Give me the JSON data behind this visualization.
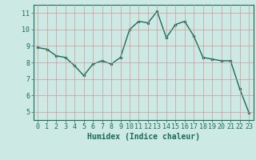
{
  "x": [
    0,
    1,
    2,
    3,
    4,
    5,
    6,
    7,
    8,
    9,
    10,
    11,
    12,
    13,
    14,
    15,
    16,
    17,
    18,
    19,
    20,
    21,
    22,
    23
  ],
  "y": [
    8.9,
    8.8,
    8.4,
    8.3,
    7.8,
    7.2,
    7.9,
    8.1,
    7.9,
    8.3,
    10.0,
    10.5,
    10.4,
    11.1,
    9.5,
    10.3,
    10.5,
    9.6,
    8.3,
    8.2,
    8.1,
    8.1,
    6.4,
    4.95
  ],
  "line_color": "#1a6b5a",
  "marker": ".",
  "markersize": 3,
  "linewidth": 1.0,
  "xlabel": "Humidex (Indice chaleur)",
  "xlabel_fontsize": 7,
  "xtick_labels": [
    "0",
    "1",
    "2",
    "3",
    "4",
    "5",
    "6",
    "7",
    "8",
    "9",
    "10",
    "11",
    "12",
    "13",
    "14",
    "15",
    "16",
    "17",
    "18",
    "19",
    "20",
    "21",
    "22",
    "23"
  ],
  "ytick_labels": [
    "5",
    "6",
    "7",
    "8",
    "9",
    "10",
    "11"
  ],
  "ylim": [
    4.5,
    11.5
  ],
  "xlim": [
    -0.5,
    23.5
  ],
  "background_color": "#cde9e3",
  "grid_color": "#cc9999",
  "tick_color": "#1a6b5a",
  "tick_fontsize": 6,
  "fig_bg": "#cde9e3"
}
